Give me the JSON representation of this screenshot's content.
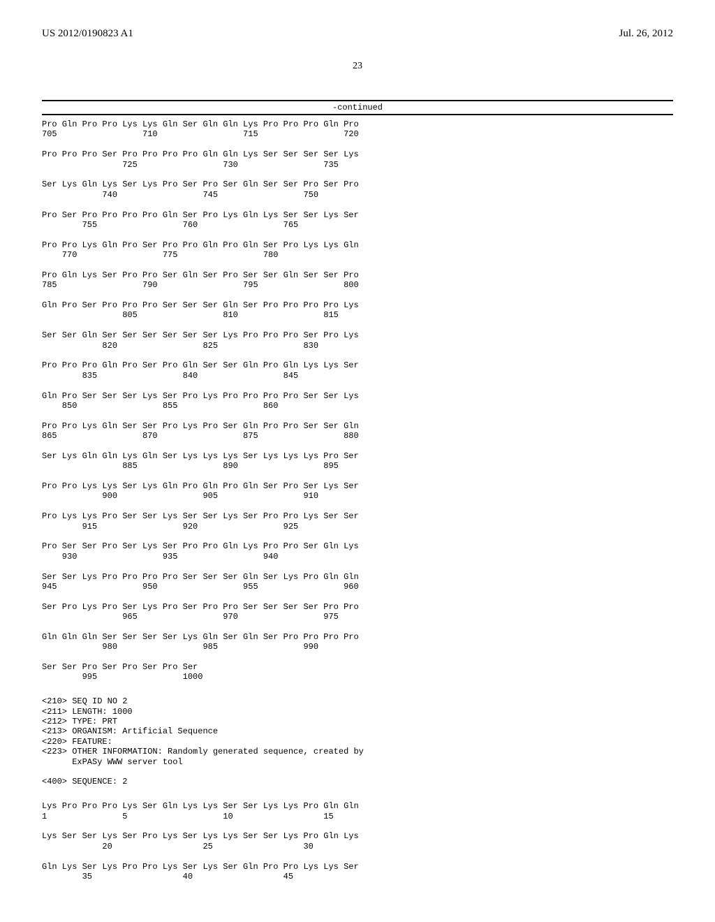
{
  "header": {
    "left": "US 2012/0190823 A1",
    "right": "Jul. 26, 2012"
  },
  "page_number": "23",
  "continued_label": "-continued",
  "sequence_rows": [
    {
      "aa": "Pro Gln Pro Pro Lys Lys Gln Ser Gln Gln Lys Pro Pro Pro Gln Pro",
      "pos": "705                 710                 715                 720"
    },
    {
      "aa": "Pro Pro Pro Ser Pro Pro Pro Pro Gln Gln Lys Ser Ser Ser Ser Lys",
      "pos": "                725                 730                 735"
    },
    {
      "aa": "Ser Lys Gln Lys Ser Lys Pro Ser Pro Ser Gln Ser Ser Pro Ser Pro",
      "pos": "            740                 745                 750"
    },
    {
      "aa": "Pro Ser Pro Pro Pro Pro Gln Ser Pro Lys Gln Lys Ser Ser Lys Ser",
      "pos": "        755                 760                 765"
    },
    {
      "aa": "Pro Pro Lys Gln Pro Ser Pro Pro Gln Pro Gln Ser Pro Lys Lys Gln",
      "pos": "    770                 775                 780"
    },
    {
      "aa": "Pro Gln Lys Ser Pro Pro Ser Gln Ser Pro Ser Ser Gln Ser Ser Pro",
      "pos": "785                 790                 795                 800"
    },
    {
      "aa": "Gln Pro Ser Pro Pro Pro Ser Ser Ser Gln Ser Pro Pro Pro Pro Lys",
      "pos": "                805                 810                 815"
    },
    {
      "aa": "Ser Ser Gln Ser Ser Ser Ser Ser Ser Lys Pro Pro Pro Ser Pro Lys",
      "pos": "            820                 825                 830"
    },
    {
      "aa": "Pro Pro Pro Gln Pro Ser Pro Gln Ser Ser Gln Pro Gln Lys Lys Ser",
      "pos": "        835                 840                 845"
    },
    {
      "aa": "Gln Pro Ser Ser Ser Lys Ser Pro Lys Pro Pro Pro Pro Ser Ser Lys",
      "pos": "    850                 855                 860"
    },
    {
      "aa": "Pro Pro Lys Gln Ser Ser Pro Lys Pro Ser Gln Pro Pro Ser Ser Gln",
      "pos": "865                 870                 875                 880"
    },
    {
      "aa": "Ser Lys Gln Gln Lys Gln Ser Lys Lys Lys Ser Lys Lys Lys Pro Ser",
      "pos": "                885                 890                 895"
    },
    {
      "aa": "Pro Pro Lys Lys Ser Lys Gln Pro Gln Pro Gln Ser Pro Ser Lys Ser",
      "pos": "            900                 905                 910"
    },
    {
      "aa": "Pro Lys Lys Pro Ser Ser Lys Ser Ser Lys Ser Pro Pro Lys Ser Ser",
      "pos": "        915                 920                 925"
    },
    {
      "aa": "Pro Ser Ser Pro Ser Lys Ser Pro Pro Gln Lys Pro Pro Ser Gln Lys",
      "pos": "    930                 935                 940"
    },
    {
      "aa": "Ser Ser Lys Pro Pro Pro Pro Ser Ser Ser Gln Ser Lys Pro Gln Gln",
      "pos": "945                 950                 955                 960"
    },
    {
      "aa": "Ser Pro Lys Pro Ser Lys Pro Ser Pro Pro Ser Ser Ser Ser Pro Pro",
      "pos": "                965                 970                 975"
    },
    {
      "aa": "Gln Gln Gln Ser Ser Ser Ser Lys Gln Ser Gln Ser Pro Pro Pro Pro",
      "pos": "            980                 985                 990"
    },
    {
      "aa": "Ser Ser Pro Ser Pro Ser Pro Ser",
      "pos": "        995                 1000"
    }
  ],
  "meta_block": [
    "<210> SEQ ID NO 2",
    "<211> LENGTH: 1000",
    "<212> TYPE: PRT",
    "<213> ORGANISM: Artificial Sequence",
    "<220> FEATURE:",
    "<223> OTHER INFORMATION: Randomly generated sequence, created by",
    "      ExPASy WWW server tool",
    "",
    "<400> SEQUENCE: 2"
  ],
  "sequence_rows_2": [
    {
      "aa": "Lys Pro Pro Pro Lys Ser Gln Lys Lys Ser Ser Lys Lys Pro Gln Gln",
      "pos": "1               5                   10                  15"
    },
    {
      "aa": "Lys Ser Ser Lys Ser Pro Lys Ser Lys Lys Ser Ser Lys Pro Gln Lys",
      "pos": "            20                  25                  30"
    },
    {
      "aa": "Gln Lys Ser Lys Pro Pro Lys Ser Lys Ser Gln Pro Pro Lys Lys Ser",
      "pos": "        35                  40                  45"
    }
  ]
}
